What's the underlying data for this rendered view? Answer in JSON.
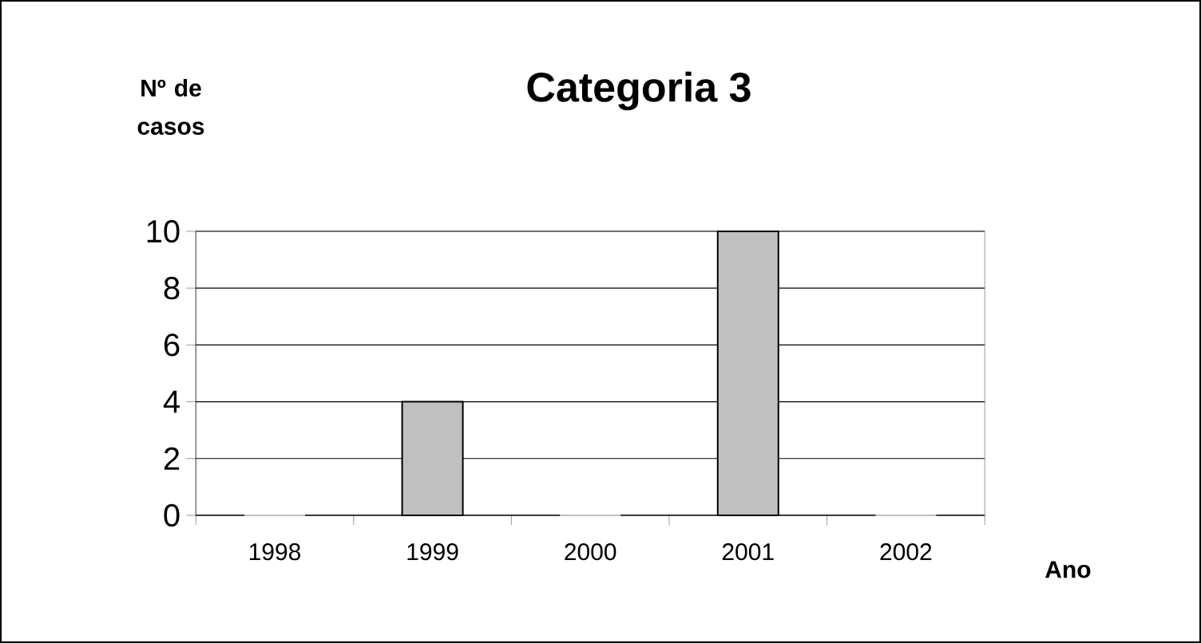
{
  "chart_data": {
    "type": "bar",
    "title": "Categoria 3",
    "xlabel": "Ano",
    "ylabel": "Nº de casos",
    "categories": [
      "1998",
      "1999",
      "2000",
      "2001",
      "2002"
    ],
    "values": [
      0,
      4,
      0,
      10,
      0
    ],
    "color": "#c0c0c0",
    "ylim": [
      0,
      10
    ],
    "yticks": [
      0,
      2,
      4,
      6,
      8,
      10
    ],
    "grid": "y"
  }
}
